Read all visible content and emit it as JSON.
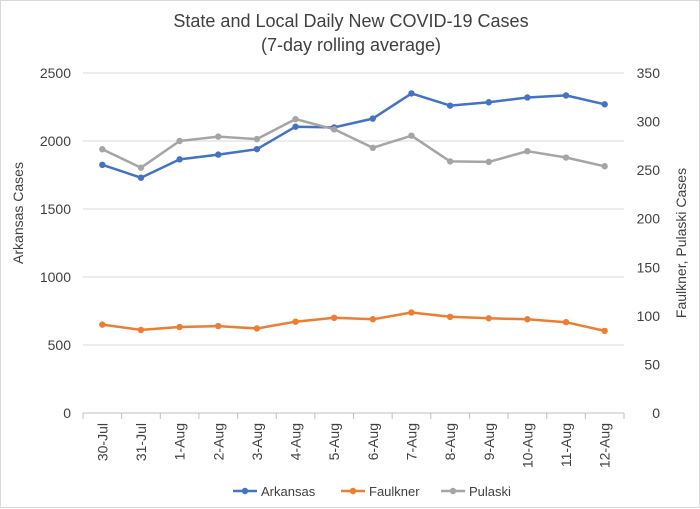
{
  "chart_data": {
    "type": "line",
    "title": "State and Local Daily New COVID-19 Cases",
    "subtitle": "(7-day rolling average)",
    "categories": [
      "30-Jul",
      "31-Jul",
      "1-Aug",
      "2-Aug",
      "3-Aug",
      "4-Aug",
      "5-Aug",
      "6-Aug",
      "7-Aug",
      "8-Aug",
      "9-Aug",
      "10-Aug",
      "11-Aug",
      "12-Aug"
    ],
    "ylabel": "Arkansas Cases",
    "y2label": "Faulkner, Pulaski Cases",
    "ylim": [
      0,
      2500
    ],
    "y2lim": [
      0,
      350
    ],
    "yticks": [
      "0",
      "500",
      "1000",
      "1500",
      "2000",
      "2500"
    ],
    "y2ticks": [
      "0",
      "50",
      "100",
      "150",
      "200",
      "250",
      "300",
      "350"
    ],
    "grid": true,
    "legend_position": "bottom",
    "series": [
      {
        "name": "Arkansas",
        "axis": "left",
        "color": "#4472c4",
        "values": [
          1825,
          1730,
          1865,
          1900,
          1940,
          2105,
          2100,
          2165,
          2350,
          2260,
          2285,
          2320,
          2335,
          2270
        ]
      },
      {
        "name": "Faulkner",
        "axis": "right",
        "color": "#ed7d31",
        "values": [
          91,
          85.5,
          88.5,
          89.5,
          87,
          94,
          98,
          96.5,
          103.5,
          99,
          97.5,
          96.5,
          93.5,
          84.5
        ]
      },
      {
        "name": "Pulaski",
        "axis": "right",
        "color": "#a5a5a5",
        "values": [
          271.5,
          252.5,
          280,
          284.5,
          282,
          302.5,
          292,
          273,
          285.5,
          259,
          258.5,
          269.5,
          263,
          254
        ]
      }
    ]
  }
}
